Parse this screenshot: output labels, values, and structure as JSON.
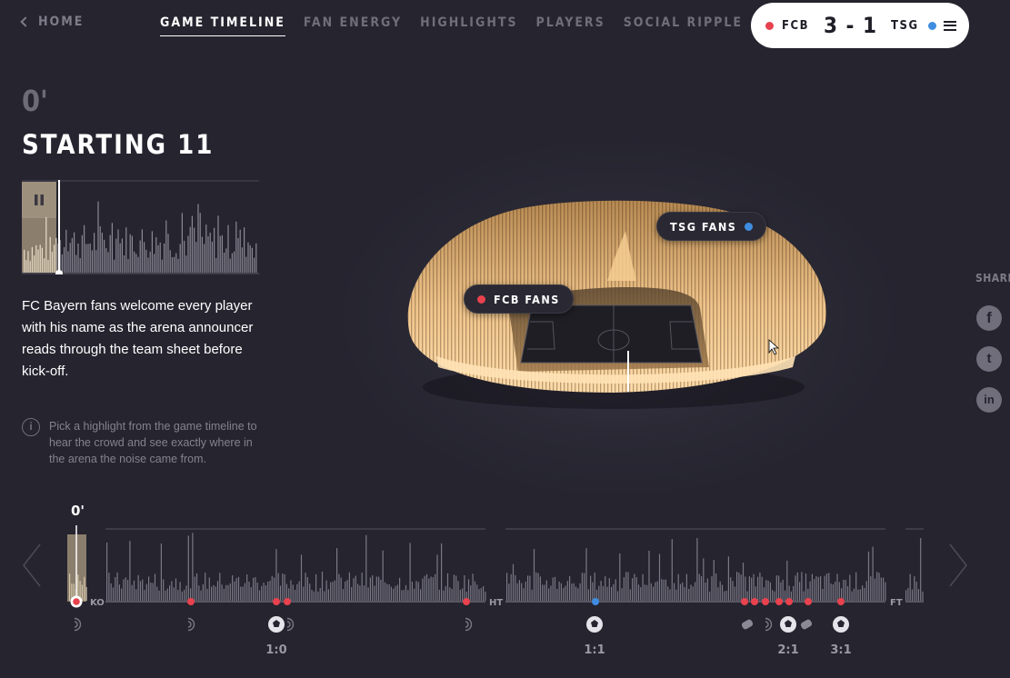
{
  "nav": {
    "home_label": "HOME",
    "tabs": [
      {
        "label": "GAME TIMELINE",
        "active": true
      },
      {
        "label": "FAN ENERGY",
        "active": false
      },
      {
        "label": "HIGHLIGHTS",
        "active": false
      },
      {
        "label": "PLAYERS",
        "active": false
      },
      {
        "label": "SOCIAL RIPPLE",
        "active": false
      }
    ]
  },
  "scoreboard": {
    "home_team": "FCB",
    "away_team": "TSG",
    "score": "3 - 1",
    "home_color": "#e8424e",
    "away_color": "#3f8de0",
    "menu_icon": "hamburger-menu-icon"
  },
  "moment": {
    "minute": "0'",
    "title": "STARTING 11",
    "description": "FC Bayern fans welcome every player with his name as the arena announcer reads through the team sheet before kick-off.",
    "play_state": "paused"
  },
  "info": {
    "icon": "info-icon",
    "text": "Pick a highlight from the game timeline to hear the crowd and see exactly where in the arena the noise came from."
  },
  "stadium": {
    "home_fans_label": "FCB FANS",
    "away_fans_label": "TSG FANS"
  },
  "share": {
    "label": "SHARE",
    "networks": [
      {
        "name": "facebook",
        "icon": "facebook-icon",
        "glyph": "f"
      },
      {
        "name": "twitter",
        "icon": "twitter-icon",
        "glyph": "t"
      },
      {
        "name": "linkedin",
        "icon": "linkedin-icon",
        "glyph": "in"
      }
    ]
  },
  "timeline": {
    "current_minute": "0'",
    "kickoff_label": "KO",
    "halftime_label": "HT",
    "fulltime_label": "FT",
    "score_labels": [
      {
        "score": "1:0",
        "team": "home"
      },
      {
        "score": "1:1",
        "team": "away"
      },
      {
        "score": "2:1",
        "team": "home"
      },
      {
        "score": "3:1",
        "team": "home"
      }
    ]
  }
}
